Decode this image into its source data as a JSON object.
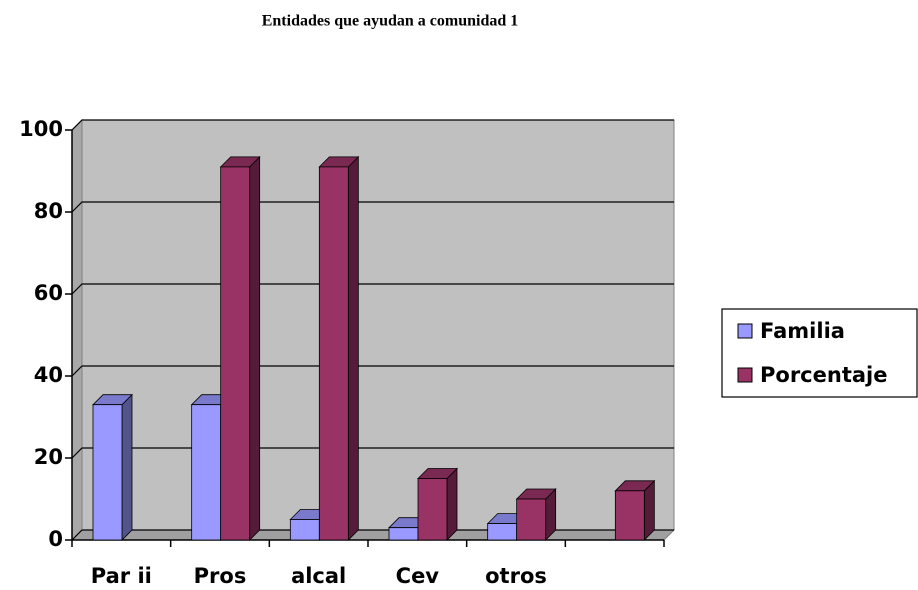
{
  "chart_data": {
    "type": "bar",
    "title": "Entidades que ayudan a comunidad 1",
    "categories": [
      "Par ii",
      "Pros",
      "alcal",
      "Cev",
      "otros",
      null
    ],
    "series": [
      {
        "name": "Familia",
        "color": "#9999ff",
        "values": [
          33,
          33,
          5,
          3,
          4,
          null
        ]
      },
      {
        "name": "Porcentaje",
        "color": "#993366",
        "values": [
          null,
          91,
          91,
          15,
          10,
          12
        ]
      }
    ],
    "ylim": [
      0,
      100
    ],
    "yticks": [
      0,
      20,
      40,
      60,
      80,
      100
    ],
    "grid": true,
    "legend": "right"
  }
}
